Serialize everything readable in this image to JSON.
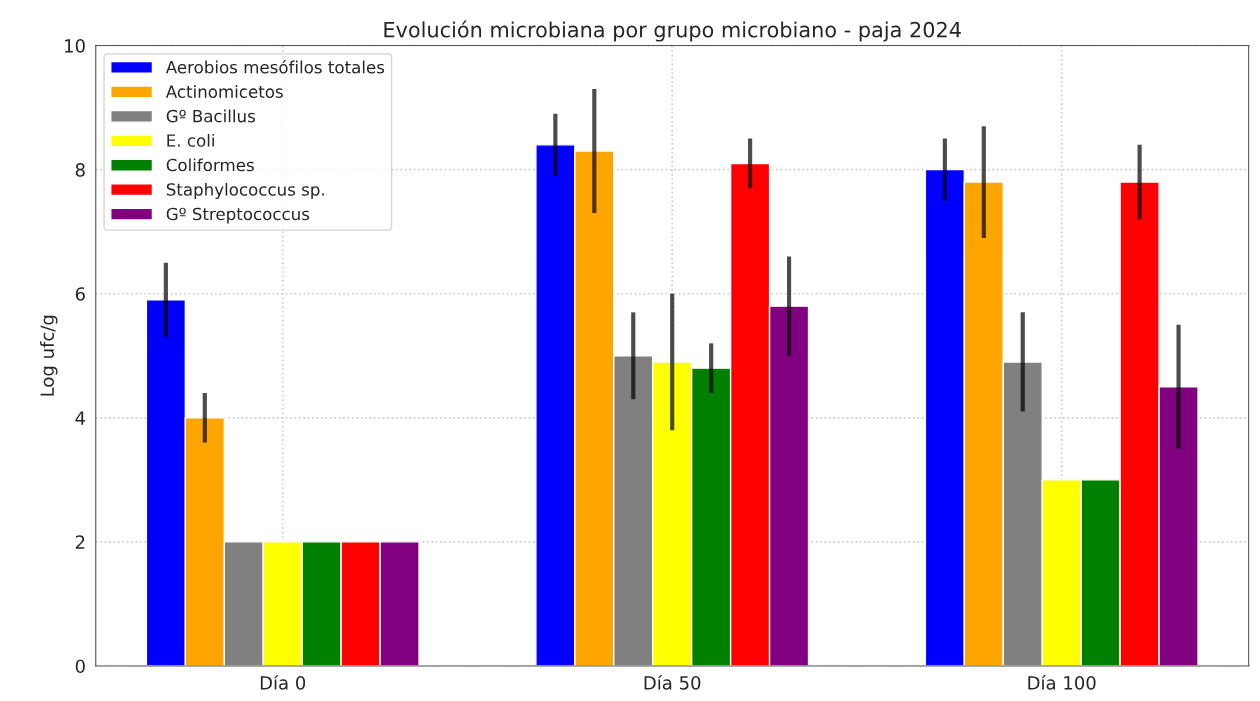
{
  "chart_data": {
    "type": "bar",
    "title": "Evolución microbiana por grupo microbiano - paja 2024",
    "ylabel": "Log ufc/g",
    "categories": [
      "Día 0",
      "Día 50",
      "Día 100"
    ],
    "series": [
      {
        "name": "Aerobios mesófilos totales",
        "color": "#0000ff",
        "values": [
          5.9,
          8.4,
          8.0
        ],
        "errors": [
          0.6,
          0.5,
          0.5
        ]
      },
      {
        "name": "Actinomicetos",
        "color": "#ffa500",
        "values": [
          4.0,
          8.3,
          7.8
        ],
        "errors": [
          0.4,
          1.0,
          0.9
        ]
      },
      {
        "name": "Gº Bacillus",
        "color": "#808080",
        "values": [
          2.0,
          5.0,
          4.9
        ],
        "errors": [
          null,
          0.7,
          0.8
        ]
      },
      {
        "name": "E. coli",
        "color": "#ffff00",
        "values": [
          2.0,
          4.9,
          3.0
        ],
        "errors": [
          null,
          1.1,
          null
        ]
      },
      {
        "name": "Coliformes",
        "color": "#008000",
        "values": [
          2.0,
          4.8,
          3.0
        ],
        "errors": [
          null,
          0.4,
          null
        ]
      },
      {
        "name": "Staphylococcus sp.",
        "color": "#ff0000",
        "values": [
          2.0,
          8.1,
          7.8
        ],
        "errors": [
          null,
          0.4,
          0.6
        ]
      },
      {
        "name": "Gº Streptococcus",
        "color": "#800080",
        "values": [
          2.0,
          5.8,
          4.5
        ],
        "errors": [
          null,
          0.8,
          1.0
        ]
      }
    ],
    "ylim": [
      0,
      10
    ],
    "yticks": [
      0,
      2,
      4,
      6,
      8,
      10
    ],
    "grid": true,
    "legend": "top left"
  }
}
